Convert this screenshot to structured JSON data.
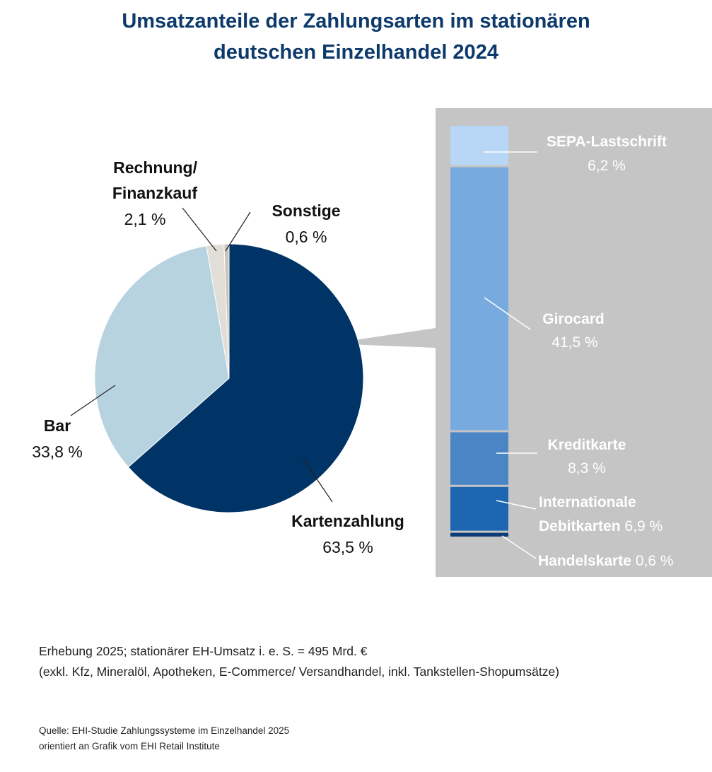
{
  "title": {
    "line1": "Umsatzanteile der Zahlungsarten im stationären",
    "line2": "deutschen Einzelhandel 2024"
  },
  "chart_data": [
    {
      "type": "pie",
      "slices": [
        {
          "label": "Kartenzahlung",
          "value": 63.5,
          "value_label": "63,5 %",
          "color": "#003366"
        },
        {
          "label": "Bar",
          "value": 33.8,
          "value_label": "33,8 %",
          "color": "#b6d3df"
        },
        {
          "label_lines": [
            "Rechnung/",
            "Finanzkauf"
          ],
          "value": 2.1,
          "value_label": "2,1 %",
          "color": "#e1ddd7"
        },
        {
          "label": "Sonstige",
          "value": 0.6,
          "value_label": "0,6 %",
          "color": "#c8c4bd"
        }
      ],
      "exploded_slice": "Kartenzahlung"
    },
    {
      "type": "bar",
      "stacked": true,
      "panel_color": "#c5c5c5",
      "segments": [
        {
          "label": "SEPA-Lastschrift",
          "value": 6.2,
          "value_label": "6,2 %",
          "color": "#b8d7f7"
        },
        {
          "label": "Girocard",
          "value": 41.5,
          "value_label": "41,5 %",
          "color": "#77aade"
        },
        {
          "label": "Kreditkarte",
          "value": 8.3,
          "value_label": "8,3 %",
          "color": "#4a86c5"
        },
        {
          "label_lines": [
            "Internationale",
            "Debitkarten"
          ],
          "value": 6.9,
          "value_label": "6,9 %",
          "color": "#1d66b2"
        },
        {
          "label": "Handelskarte",
          "value": 0.6,
          "value_label": "0,6 %",
          "color": "#0e3c78"
        }
      ]
    }
  ],
  "note": {
    "line1": "Erhebung 2025; stationärer EH-Umsatz i. e. S. = 495 Mrd. €",
    "line2": "(exkl. Kfz, Mineralöl, Apotheken, E-Commerce/ Versandhandel, inkl. Tankstellen-Shopumsätze)"
  },
  "source": {
    "line1": "Quelle: EHI-Studie Zahlungssysteme im Einzelhandel 2025",
    "line2": "orientiert an Grafik vom EHI Retail Institute"
  }
}
